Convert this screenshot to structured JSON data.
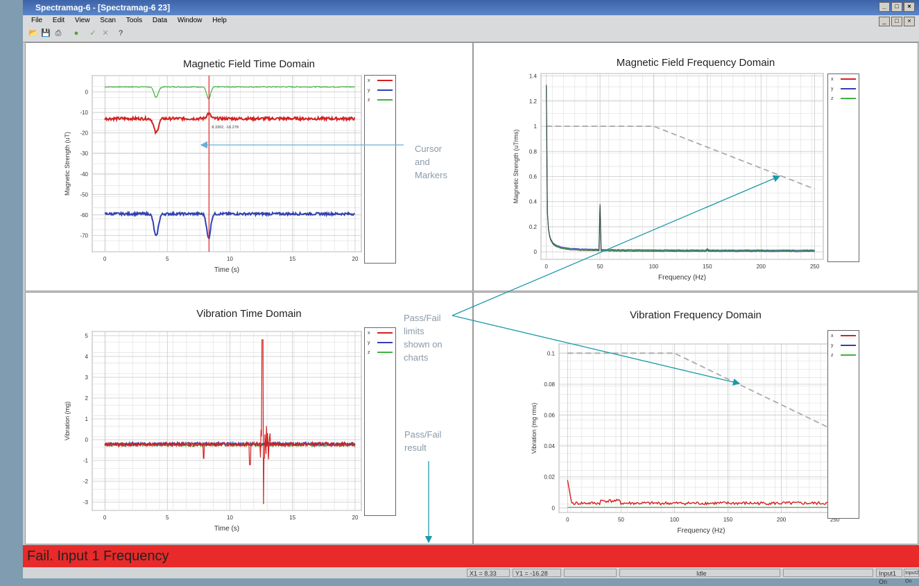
{
  "window": {
    "title": "Spectramag-6 - [Spectramag-6 23]",
    "controls": [
      "_",
      "□",
      "×"
    ]
  },
  "menu": [
    "File",
    "Edit",
    "View",
    "Scan",
    "Tools",
    "Data",
    "Window",
    "Help"
  ],
  "toolbar": [
    "open-icon",
    "save-icon",
    "print-icon",
    "record-icon",
    "check-icon",
    "cancel-icon",
    "help-icon"
  ],
  "charts": {
    "mag_time": {
      "title": "Magnetic Field Time Domain",
      "xlabel": "Time (s)",
      "ylabel": "Magnetic Strength (uT)",
      "xticks": [
        "0",
        "5",
        "10",
        "15",
        "20"
      ],
      "yticks": [
        "0",
        "-10",
        "-20",
        "-30",
        "-40",
        "-50",
        "-60",
        "-70"
      ],
      "marker_label": "8.3302, -16.278",
      "legend": [
        "x",
        "y",
        "z"
      ]
    },
    "mag_freq": {
      "title": "Magnetic Field Frequency Domain",
      "xlabel": "Frequency (Hz)",
      "ylabel": "Magnetic Strength (uTrms)",
      "xticks": [
        "0",
        "50",
        "100",
        "150",
        "200",
        "250"
      ],
      "yticks": [
        "1.4",
        "1.2",
        "1",
        "0.8",
        "0.6",
        "0.4",
        "0.2",
        "0"
      ],
      "legend": [
        "x",
        "y",
        "z"
      ]
    },
    "vib_time": {
      "title": "Vibration Time Domain",
      "xlabel": "Time (s)",
      "ylabel": "Vibration (mg)",
      "xticks": [
        "0",
        "5",
        "10",
        "15",
        "20"
      ],
      "yticks": [
        "5",
        "4",
        "3",
        "2",
        "1",
        "0",
        "-1",
        "-2",
        "-3"
      ],
      "legend": [
        "x",
        "y",
        "z"
      ]
    },
    "vib_freq": {
      "title": "Vibration Frequency Domain",
      "xlabel": "Frequency (Hz)",
      "ylabel": "Vibration (mg rms)",
      "xticks": [
        "0",
        "50",
        "100",
        "150",
        "200",
        "250"
      ],
      "yticks": [
        "0.1",
        "0.08",
        "0.06",
        "0.04",
        "0.02",
        "0"
      ],
      "legend": [
        "x",
        "y",
        "z"
      ]
    }
  },
  "annotations": {
    "cursor": [
      "Cursor",
      "and",
      "Markers"
    ],
    "passfail_limits": [
      "Pass/Fail",
      "limits",
      "shown on",
      "charts"
    ],
    "passfail_result": [
      "Pass/Fail",
      "result"
    ]
  },
  "fail_banner": "Fail. Input 1 Frequency",
  "statusbar": {
    "x1": "X1 = 8.33",
    "y1": "Y1 = -16.28",
    "state": "Idle",
    "input1": "Input1 On",
    "input2": "Input2 On"
  },
  "colors": {
    "x": "#d42020",
    "y": "#3040b0",
    "z": "#40b040",
    "fail": "#e82a2a",
    "arrow": "#1a9aa8"
  }
}
